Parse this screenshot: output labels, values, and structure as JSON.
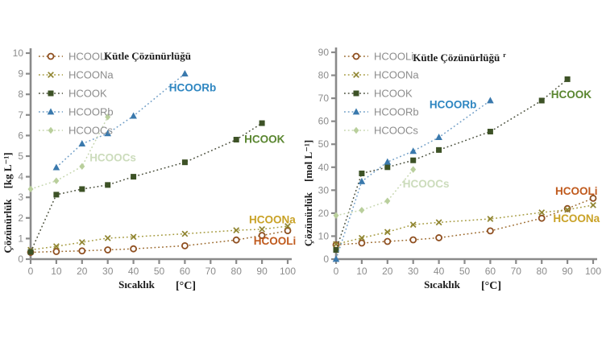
{
  "page": {
    "background": "#ffffff",
    "colors": {
      "axis": "#8a8a8a",
      "tick_text": "#8c8c8c",
      "legend_text": "#8c8c8c",
      "title_text": "#1b1b1b"
    }
  },
  "chart_data": [
    {
      "type": "line",
      "title": "Kütle Çözünürlüğü",
      "title_suffix": "",
      "xlabel": "Sıcaklık",
      "xunit": "[°C]",
      "ylabel": "Çözünürlük",
      "yunit": "[kg L⁻¹]",
      "xlim": [
        0,
        100
      ],
      "ylim": [
        0,
        10
      ],
      "xtick_step": 10,
      "ytick_step": 1,
      "grid": false,
      "legend_position": "top-left",
      "legend_entries": [
        "HCOOLi",
        "HCOONa",
        "HCOOK",
        "HCOORb",
        "HCOOCs"
      ],
      "series": [
        {
          "name": "HCOOLi",
          "marker": "circle-open",
          "line_color": "#9c6a2e",
          "marker_color": "#8f4f20",
          "label_color": "#c05a1d",
          "x": [
            0,
            10,
            20,
            30,
            40,
            60,
            80,
            90,
            100
          ],
          "y": [
            0.33,
            0.37,
            0.4,
            0.45,
            0.5,
            0.65,
            0.93,
            1.15,
            1.38
          ]
        },
        {
          "name": "HCOONa",
          "marker": "x",
          "line_color": "#a59a3e",
          "marker_color": "#8f8430",
          "label_color": "#c9a227",
          "x": [
            0,
            10,
            20,
            30,
            40,
            60,
            80,
            90,
            100
          ],
          "y": [
            0.45,
            0.62,
            0.82,
            1.02,
            1.08,
            1.23,
            1.4,
            1.45,
            1.6
          ]
        },
        {
          "name": "HCOOK",
          "marker": "square",
          "line_color": "#4a4f3c",
          "marker_color": "#3d5226",
          "label_color": "#5a8630",
          "x": [
            0,
            10,
            20,
            30,
            40,
            60,
            80,
            90
          ],
          "y": [
            0.35,
            3.13,
            3.4,
            3.6,
            4.0,
            4.7,
            5.8,
            6.6
          ]
        },
        {
          "name": "HCOORb",
          "marker": "triangle",
          "line_color": "#6f9dc6",
          "marker_color": "#3a79ad",
          "label_color": "#2e86c1",
          "x": [
            10,
            20,
            30,
            40,
            60
          ],
          "y": [
            4.45,
            5.6,
            6.1,
            6.95,
            9.0
          ]
        },
        {
          "name": "HCOOCs",
          "marker": "diamond",
          "line_color": "#c5d6ae",
          "marker_color": "#b9cf9c",
          "label_color": "#ccdcbc",
          "x": [
            0,
            10,
            20,
            30
          ],
          "y": [
            3.4,
            3.8,
            4.5,
            6.9
          ]
        }
      ],
      "annotations": [
        {
          "text": "HCOORb",
          "x": 63,
          "y": 8.3,
          "color": "#2e86c1"
        },
        {
          "text": "HCOOK",
          "x": 91,
          "y": 5.8,
          "color": "#5a8630"
        },
        {
          "text": "HCOOCs",
          "x": 32,
          "y": 4.9,
          "color": "#ccdcbc"
        },
        {
          "text": "HCOONa",
          "x": 94,
          "y": 1.9,
          "color": "#c9a227"
        },
        {
          "text": "HCOOLi",
          "x": 95,
          "y": 0.85,
          "color": "#c05a1d"
        }
      ]
    },
    {
      "type": "line",
      "title": "Kütle Çözünürlüğü",
      "title_suffix": "r",
      "xlabel": "Sıcaklık",
      "xunit": "[°C]",
      "ylabel": "Çözünürlük",
      "yunit": "[mol L⁻¹]",
      "xlim": [
        0,
        100
      ],
      "ylim": [
        0,
        90
      ],
      "xtick_step": 10,
      "ytick_step": 10,
      "grid": false,
      "legend_position": "top-left",
      "legend_entries": [
        "HCOOLi",
        "HCOONa",
        "HCOOK",
        "HCOORb",
        "HCOOCs"
      ],
      "series": [
        {
          "name": "HCOOLi",
          "marker": "circle-open",
          "line_color": "#9c6a2e",
          "marker_color": "#8f4f20",
          "label_color": "#c05a1d",
          "x": [
            0,
            10,
            20,
            30,
            40,
            60,
            80,
            90,
            100
          ],
          "y": [
            6.2,
            7.0,
            7.7,
            8.4,
            9.3,
            12.3,
            17.8,
            22.0,
            26.5
          ]
        },
        {
          "name": "HCOONa",
          "marker": "x",
          "line_color": "#a59a3e",
          "marker_color": "#8f8430",
          "label_color": "#c9a227",
          "x": [
            0,
            10,
            20,
            30,
            40,
            60,
            80,
            90,
            100
          ],
          "y": [
            6.5,
            9.2,
            11.8,
            15.0,
            16.0,
            17.5,
            20.3,
            21.5,
            23.5
          ]
        },
        {
          "name": "HCOOK",
          "marker": "square",
          "line_color": "#4a4f3c",
          "marker_color": "#3d5226",
          "label_color": "#5a8630",
          "x": [
            0,
            10,
            20,
            30,
            40,
            60,
            80,
            90
          ],
          "y": [
            4.0,
            37.3,
            40.0,
            43.0,
            47.5,
            55.5,
            69.0,
            78.3
          ]
        },
        {
          "name": "HCOORb",
          "marker": "triangle",
          "line_color": "#6f9dc6",
          "marker_color": "#3a79ad",
          "label_color": "#2e86c1",
          "x": [
            0,
            10,
            20,
            30,
            40,
            60
          ],
          "y": [
            0.0,
            33.8,
            42.3,
            47.0,
            53.0,
            69.0
          ]
        },
        {
          "name": "HCOOCs",
          "marker": "diamond",
          "line_color": "#c5d6ae",
          "marker_color": "#b9cf9c",
          "label_color": "#ccdcbc",
          "x": [
            0,
            10,
            20,
            30
          ],
          "y": [
            19.0,
            21.3,
            25.3,
            39.0
          ]
        }
      ],
      "annotations": [
        {
          "text": "HCOORb",
          "x": 45.5,
          "y": 67.0,
          "color": "#2e86c1"
        },
        {
          "text": "HCOOK",
          "x": 91.5,
          "y": 71.5,
          "color": "#5a8630"
        },
        {
          "text": "HCOOCs",
          "x": 35,
          "y": 32.5,
          "color": "#ccdcbc"
        },
        {
          "text": "HCOOLi",
          "x": 93.5,
          "y": 29.5,
          "color": "#c05a1d"
        },
        {
          "text": "HCOONa",
          "x": 93.5,
          "y": 17.5,
          "color": "#c9a227"
        }
      ]
    }
  ]
}
